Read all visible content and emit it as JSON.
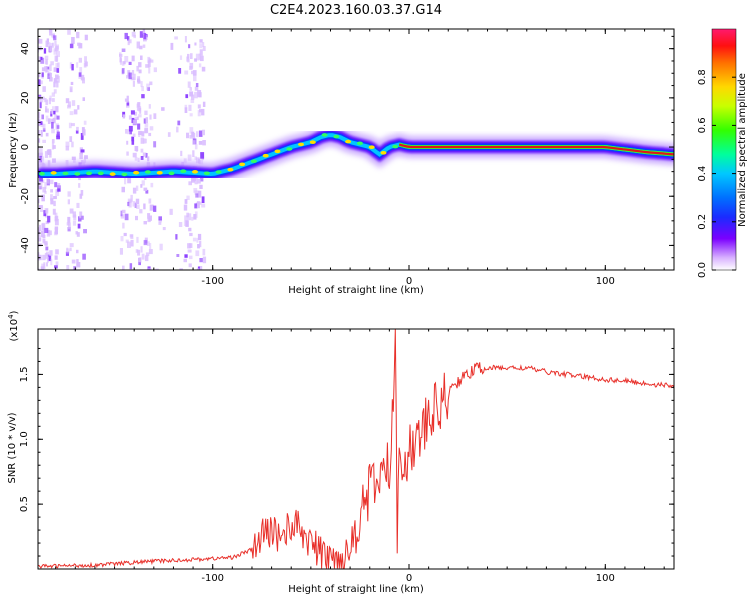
{
  "title": "C2E4.2023.160.03.37.G14",
  "chart_data": [
    {
      "type": "heatmap",
      "title": "C2E4.2023.160.03.37.G14",
      "xlabel": "Height of straight line (km)",
      "ylabel": "Frequency (Hz)",
      "xlim": [
        -189,
        135
      ],
      "ylim": [
        -50,
        48
      ],
      "xticks": [
        -100,
        0,
        100
      ],
      "yticks": [
        -40,
        -20,
        0,
        20,
        40
      ],
      "ridge": {
        "x": [
          -180,
          -160,
          -140,
          -120,
          -100,
          -90,
          -80,
          -70,
          -60,
          -50,
          -45,
          -40,
          -35,
          -30,
          -25,
          -20,
          -15,
          -10,
          -5,
          0,
          10,
          20,
          40,
          60,
          80,
          100,
          120,
          135
        ],
        "y": [
          -11,
          -10,
          -11,
          -10,
          -11,
          -9,
          -6,
          -3,
          0,
          2,
          4,
          5,
          4,
          2,
          1,
          0,
          -3,
          0,
          1,
          0,
          0,
          0,
          0,
          0,
          0,
          0,
          -2,
          -3
        ]
      },
      "colorbar": {
        "label": "Normalized spectral amplitude",
        "range": [
          0.0,
          1.0
        ],
        "ticks": [
          "0.0",
          "0.2",
          "0.4",
          "0.6",
          "0.8"
        ]
      }
    },
    {
      "type": "line",
      "xlabel": "Height of straight line (km)",
      "ylabel": "SNR (10 * v/v)",
      "multiplier": "(x10",
      "multiplier_exp": "4",
      "xlim": [
        -189,
        135
      ],
      "ylim": [
        0,
        1.85
      ],
      "xticks": [
        -100,
        0,
        100
      ],
      "yticks": [
        "0.5",
        "1.0",
        "1.5"
      ],
      "series": [
        {
          "name": "SNR",
          "color": "#e8302a",
          "x": [
            -189,
            -160,
            -130,
            -100,
            -90,
            -80,
            -75,
            -70,
            -65,
            -60,
            -55,
            -50,
            -45,
            -40,
            -35,
            -30,
            -25,
            -20,
            -15,
            -10,
            -8,
            -7,
            -6,
            -5,
            0,
            5,
            10,
            15,
            20,
            25,
            30,
            35,
            40,
            50,
            60,
            70,
            80,
            90,
            100,
            110,
            120,
            135
          ],
          "y": [
            0.02,
            0.03,
            0.06,
            0.08,
            0.09,
            0.15,
            0.25,
            0.3,
            0.25,
            0.35,
            0.3,
            0.2,
            0.12,
            0.08,
            0.07,
            0.15,
            0.45,
            0.6,
            0.7,
            0.8,
            1.2,
            1.85,
            0.5,
            0.85,
            0.9,
            1.0,
            1.15,
            1.25,
            1.35,
            1.45,
            1.5,
            1.55,
            1.55,
            1.55,
            1.55,
            1.52,
            1.5,
            1.48,
            1.46,
            1.45,
            1.43,
            1.41
          ]
        }
      ]
    }
  ]
}
